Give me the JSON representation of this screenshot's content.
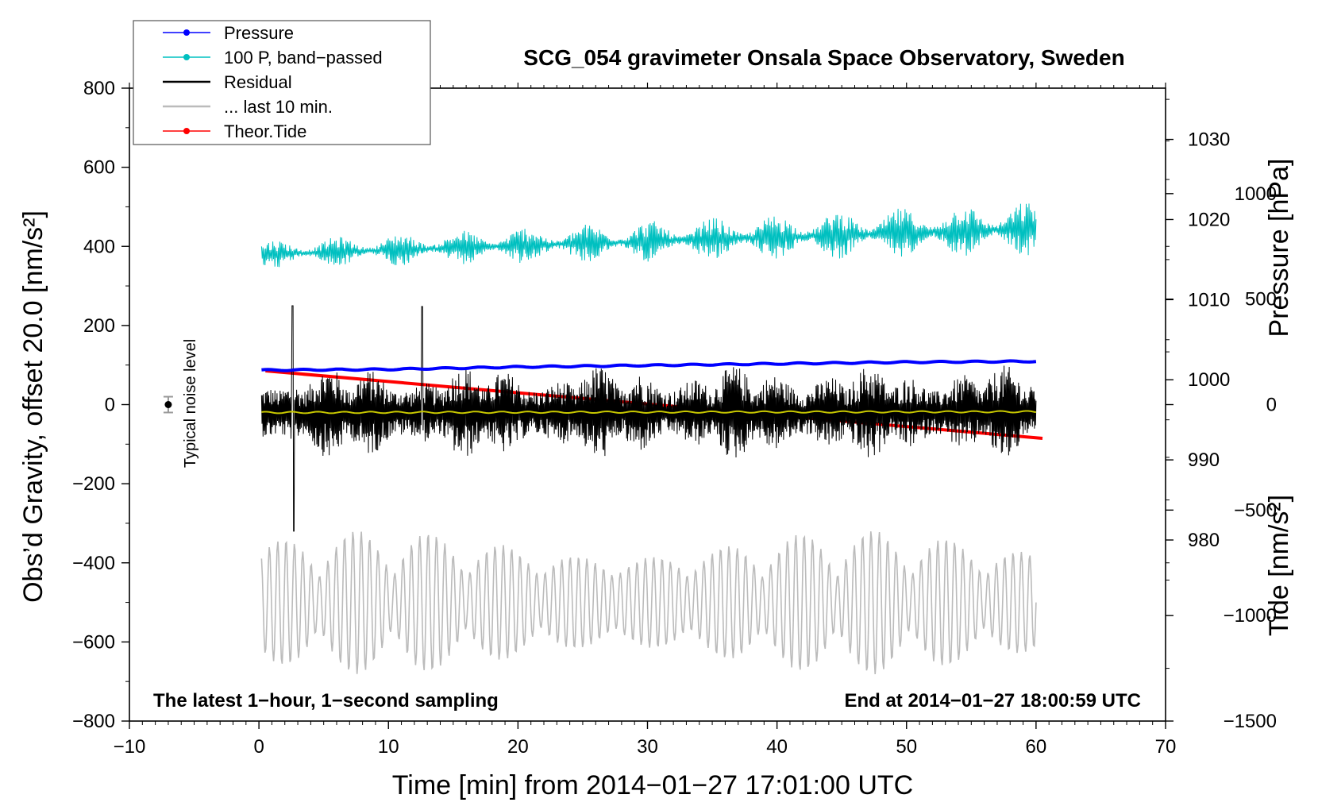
{
  "chart_data": {
    "type": "line",
    "title": "SCG_054 gravimeter Onsala Space Observatory, Sweden",
    "xlabel": "Time [min] from 2014−01−27 17:01:00 UTC",
    "ylabel_left": "Obs’d Gravity, offset 20.0 [nm/s²]",
    "ylabel_right_pressure": "Pressure [hPa]",
    "ylabel_right_tide": "Tide [nm/s²]",
    "xlim": [
      -10,
      70
    ],
    "ylim_left": [
      -800,
      800
    ],
    "ylim_pressure": [
      957.4,
      1036.4
    ],
    "ylim_tide": [
      -1500,
      1500
    ],
    "xticks": [
      -10,
      0,
      10,
      20,
      30,
      40,
      50,
      60,
      70
    ],
    "xtick_labels": [
      "−10",
      "0",
      "10",
      "20",
      "30",
      "40",
      "50",
      "60",
      "70"
    ],
    "yticks_left": [
      -800,
      -600,
      -400,
      -200,
      0,
      200,
      400,
      600,
      800
    ],
    "ytick_labels_left": [
      "−800",
      "−600",
      "−400",
      "−200",
      "0",
      "200",
      "400",
      "600",
      "800"
    ],
    "yticks_pressure": [
      980,
      990,
      1000,
      1010,
      1020,
      1030
    ],
    "ytick_labels_pressure": [
      "980",
      "990",
      "1000",
      "1010",
      "1020",
      "1030"
    ],
    "yticks_tide": [
      -1500,
      -1000,
      -500,
      0,
      500,
      1000
    ],
    "ytick_labels_tide": [
      "−1500",
      "−1000",
      "−500",
      "0",
      "500",
      "1000"
    ],
    "annotation_left": "The latest 1−hour, 1−second sampling",
    "annotation_right": "End at 2014−01−27 18:00:59 UTC",
    "noise_marker": {
      "label": "Typical noise level",
      "x": -7,
      "y": 0,
      "err": 20
    },
    "legend": [
      {
        "label": "Pressure",
        "color": "#0000ff",
        "marker": true
      },
      {
        "label": "100 P, band−passed",
        "color": "#00c0c0",
        "marker": true
      },
      {
        "label": "Residual",
        "color": "#000000",
        "marker": false
      },
      {
        "label": "... last 10 min.",
        "color": "#bbbbbb",
        "marker": false
      },
      {
        "label": "Theor.Tide",
        "color": "#ff0000",
        "marker": true
      }
    ],
    "series": [
      {
        "name": "Pressure",
        "axis": "pressure",
        "color": "#0000ff",
        "x": [
          0.2,
          10,
          20,
          30,
          40,
          50,
          60
        ],
        "values": [
          1001.2,
          1001.3,
          1001.6,
          1001.8,
          1002.0,
          1002.2,
          1002.3
        ]
      },
      {
        "name": "100 P, band−passed",
        "axis": "left",
        "color": "#00c0c0",
        "x": [
          0.2,
          60
        ],
        "values": [
          380,
          445
        ],
        "amplitude_start": 35,
        "amplitude_end": 70
      },
      {
        "name": "Residual",
        "axis": "left",
        "color": "#000000",
        "x": [
          0.2,
          60
        ],
        "values": [
          -20,
          -20
        ],
        "amplitude": 120,
        "peak_min": -320,
        "peak_max": 250
      },
      {
        "name": "Residual (smoothed)",
        "axis": "left",
        "color": "#c8c800",
        "x": [
          0.2,
          60
        ],
        "values": [
          -20,
          -18
        ]
      },
      {
        "name": "... last 10 min.",
        "axis": "left",
        "color": "#bbbbbb",
        "x": [
          0.2,
          60
        ],
        "values": [
          -500,
          -500
        ],
        "amplitude": 100,
        "peak_min": -685,
        "peak_max": -300
      },
      {
        "name": "Theor.Tide",
        "axis": "tide",
        "color": "#ff0000",
        "x": [
          0.5,
          60.5
        ],
        "values": [
          160,
          -160
        ]
      }
    ]
  }
}
